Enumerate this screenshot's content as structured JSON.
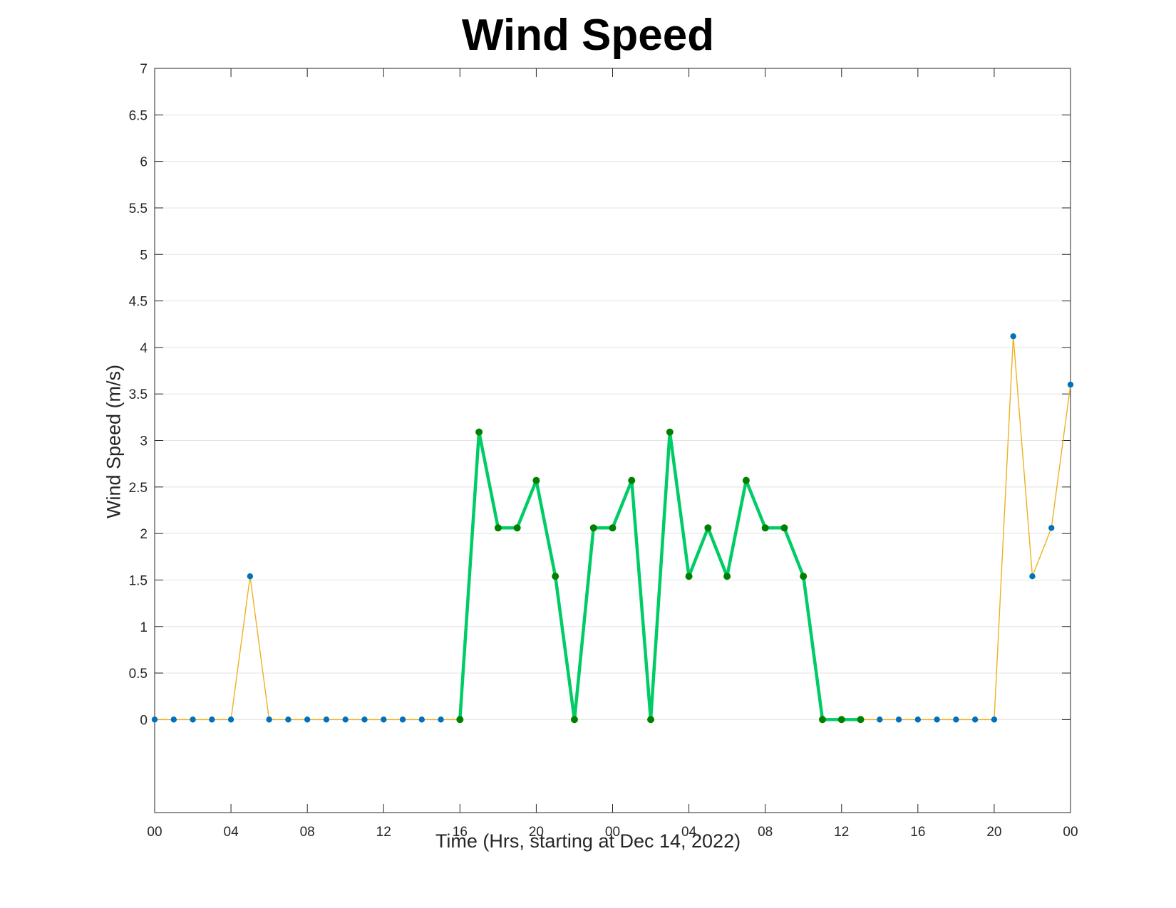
{
  "chart_data": {
    "type": "line",
    "title": "Wind Speed",
    "xlabel": "Time (Hrs, starting at Dec 14, 2022)",
    "ylabel": "Wind Speed (m/s)",
    "x_unit": "hours",
    "xlim": [
      0,
      48
    ],
    "ylim": [
      -1,
      7
    ],
    "x_ticks": [
      0,
      4,
      8,
      12,
      16,
      20,
      24,
      28,
      32,
      36,
      40,
      44,
      48
    ],
    "x_tick_labels": [
      "00",
      "04",
      "08",
      "12",
      "16",
      "20",
      "00",
      "04",
      "08",
      "12",
      "16",
      "20",
      "00"
    ],
    "y_ticks": [
      0,
      0.5,
      1,
      1.5,
      2,
      2.5,
      3,
      3.5,
      4,
      4.5,
      5,
      5.5,
      6,
      6.5,
      7
    ],
    "y_tick_labels": [
      "0",
      "0.5",
      "1",
      "1.5",
      "2",
      "2.5",
      "3",
      "3.5",
      "4",
      "4.5",
      "5",
      "5.5",
      "6",
      "6.5",
      "7"
    ],
    "grid": "horizontal",
    "series": [
      {
        "x": [
          0,
          1,
          2,
          3,
          4,
          5,
          6,
          7,
          8,
          9,
          10,
          11,
          12,
          13,
          14,
          15,
          16,
          17,
          18,
          19,
          20,
          21,
          22,
          23,
          24,
          25,
          26,
          27,
          28,
          29,
          30,
          31,
          32,
          33,
          34,
          35,
          36,
          37,
          38,
          39,
          40,
          41,
          42,
          43,
          44,
          45,
          46,
          47,
          48
        ],
        "values": [
          0,
          0,
          0,
          0,
          0,
          1.54,
          0,
          0,
          0,
          0,
          0,
          0,
          0,
          0,
          0,
          0,
          0,
          3.09,
          2.06,
          2.06,
          2.57,
          1.54,
          0,
          2.06,
          2.06,
          2.57,
          0,
          3.09,
          1.54,
          2.06,
          1.54,
          2.57,
          2.06,
          2.06,
          1.54,
          0,
          0,
          0,
          0,
          0,
          0,
          0,
          0,
          0,
          0,
          4.12,
          1.54,
          2.06,
          3.6
        ],
        "line_color": "#EDB120",
        "marker_color": "#0072BD"
      },
      {
        "x": [
          16,
          17,
          18,
          19,
          20,
          21,
          22,
          23,
          24,
          25,
          26,
          27,
          28,
          29,
          30,
          31,
          32,
          33,
          34,
          35,
          36,
          37
        ],
        "values": [
          0,
          3.09,
          2.06,
          2.06,
          2.57,
          1.54,
          0,
          2.06,
          2.06,
          2.57,
          0,
          3.09,
          1.54,
          2.06,
          1.54,
          2.57,
          2.06,
          2.06,
          1.54,
          0,
          0,
          0
        ],
        "line_color": "#00CC66",
        "marker_color": "#008000"
      }
    ]
  }
}
